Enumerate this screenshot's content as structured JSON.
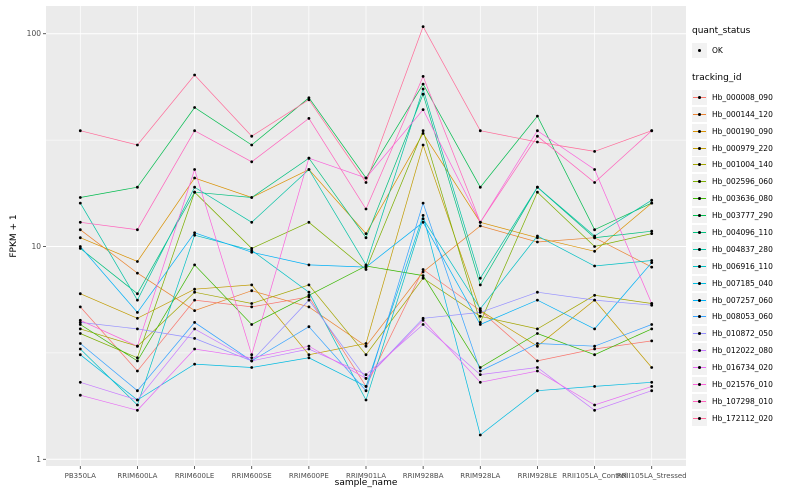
{
  "figure": {
    "xlabel": "sample_name",
    "ylabel": "FPKM + 1"
  },
  "legend": {
    "quant_status": {
      "title": "quant_status",
      "items": [
        {
          "label": "OK",
          "symbol": "black-point"
        }
      ]
    },
    "tracking": {
      "title": "tracking_id"
    }
  },
  "chart_data": {
    "type": "line",
    "x_type": "categorical",
    "title": "",
    "xlabel": "sample_name",
    "ylabel": "FPKM + 1",
    "y_scale": "log10",
    "ylim": [
      0.93,
      135
    ],
    "y_major_ticks": [
      1,
      10,
      100
    ],
    "y_minor_ticks": [
      3.162,
      31.62
    ],
    "grid": true,
    "legend_position": "right",
    "panel_bg": "#EBEBEB",
    "grid_color": "#FFFFFF",
    "point_color": "#000000",
    "tick_label_color": "#4D4D4D",
    "legend_key_bg": "#F2F2F2",
    "categories": [
      "PB350LA",
      "RRIM600LA",
      "RRIM600LE",
      "RRIM600SE",
      "RRIM600PE",
      "RRIM901LA",
      "RRIM928BA",
      "RRIM928LA",
      "RRIM928LE",
      "RRII105LA_Control",
      "RRII105LA_Stressed"
    ],
    "series": [
      {
        "name": "Hb_000008_090",
        "color": "#F8766D",
        "values": [
          5.2,
          2.6,
          5.6,
          5.2,
          5.8,
          2.2,
          7.8,
          5.0,
          2.9,
          3.3,
          3.6
        ]
      },
      {
        "name": "Hb_000144_120",
        "color": "#EA8331",
        "values": [
          12,
          7.5,
          5.0,
          6.2,
          5.2,
          3.4,
          7.6,
          12.5,
          10.5,
          11,
          8
        ]
      },
      {
        "name": "Hb_000190_090",
        "color": "#D89000",
        "values": [
          11,
          8.5,
          21,
          17,
          23,
          11.5,
          34,
          13,
          11,
          9.5,
          16
        ]
      },
      {
        "name": "Hb_000979_220",
        "color": "#C09B00",
        "values": [
          6.0,
          4.6,
          6.3,
          6.6,
          3.1,
          3.5,
          30,
          5.0,
          3.4,
          5.6,
          2.7
        ]
      },
      {
        "name": "Hb_001004_140",
        "color": "#A3A500",
        "values": [
          4.1,
          3.4,
          6.1,
          5.4,
          6.6,
          3.1,
          7.1,
          4.7,
          4.1,
          5.9,
          5.4
        ]
      },
      {
        "name": "Hb_002596_060",
        "color": "#7CAE00",
        "values": [
          3.9,
          3.0,
          18,
          9.8,
          13,
          7.8,
          35,
          4.4,
          18,
          10,
          11.5
        ]
      },
      {
        "name": "Hb_003636_080",
        "color": "#39B600",
        "values": [
          4.3,
          2.9,
          8.2,
          4.3,
          5.9,
          8.1,
          7.3,
          2.7,
          3.9,
          3.1,
          4.1
        ]
      },
      {
        "name": "Hb_003777_290",
        "color": "#00BB4E",
        "values": [
          17,
          19,
          45,
          30,
          50,
          21,
          58,
          19,
          41,
          12,
          16
        ]
      },
      {
        "name": "Hb_004096_110",
        "color": "#00BF7D",
        "values": [
          9.8,
          6.0,
          18,
          17,
          26,
          11,
          52,
          6.6,
          19,
          11,
          11.8
        ]
      },
      {
        "name": "Hb_004837_280",
        "color": "#00C1A3",
        "values": [
          16,
          5.6,
          19,
          13,
          23,
          8.2,
          55,
          7.1,
          19,
          11.2,
          16.5
        ]
      },
      {
        "name": "Hb_006916_110",
        "color": "#00BFC4",
        "values": [
          3.3,
          1.8,
          11.3,
          9.6,
          6.1,
          1.9,
          13.5,
          5.1,
          11.2,
          8.1,
          8.6
        ]
      },
      {
        "name": "Hb_007185_040",
        "color": "#00BAE0",
        "values": [
          3.1,
          1.9,
          2.8,
          2.7,
          3.0,
          2.2,
          14,
          1.3,
          2.1,
          2.2,
          2.3
        ]
      },
      {
        "name": "Hb_007257_060",
        "color": "#00B0F6",
        "values": [
          10,
          4.9,
          11.6,
          9.4,
          8.2,
          8.0,
          13,
          4.3,
          5.6,
          4.1,
          8.4
        ]
      },
      {
        "name": "Hb_008053_060",
        "color": "#35A2FF",
        "values": [
          3.5,
          2.1,
          4.4,
          2.9,
          4.2,
          2.1,
          16,
          2.6,
          3.5,
          3.4,
          4.3
        ]
      },
      {
        "name": "Hb_010872_050",
        "color": "#9590FF",
        "values": [
          4.4,
          4.1,
          3.7,
          2.9,
          5.6,
          2.4,
          4.6,
          4.9,
          6.1,
          5.6,
          5.3
        ]
      },
      {
        "name": "Hb_012022_080",
        "color": "#C77CFF",
        "values": [
          2.3,
          1.9,
          4.1,
          2.9,
          3.3,
          2.5,
          4.3,
          2.5,
          2.7,
          1.7,
          2.1
        ]
      },
      {
        "name": "Hb_016734_020",
        "color": "#E76BF3",
        "values": [
          2.0,
          1.7,
          3.3,
          3.0,
          3.4,
          2.4,
          4.5,
          2.3,
          2.6,
          1.8,
          2.2
        ]
      },
      {
        "name": "Hb_021576_010",
        "color": "#FA62DB",
        "values": [
          4.5,
          3.4,
          23,
          3.1,
          26,
          21,
          44,
          13,
          35,
          23,
          5.4
        ]
      },
      {
        "name": "Hb_107298_010",
        "color": "#FF62BC",
        "values": [
          13,
          12,
          35,
          25,
          40,
          15,
          63,
          13,
          33,
          20,
          35
        ]
      },
      {
        "name": "Hb_172112_020",
        "color": "#FF6A98",
        "values": [
          35,
          30,
          64,
          33,
          49,
          20,
          108,
          35,
          31,
          28,
          35
        ]
      }
    ]
  }
}
